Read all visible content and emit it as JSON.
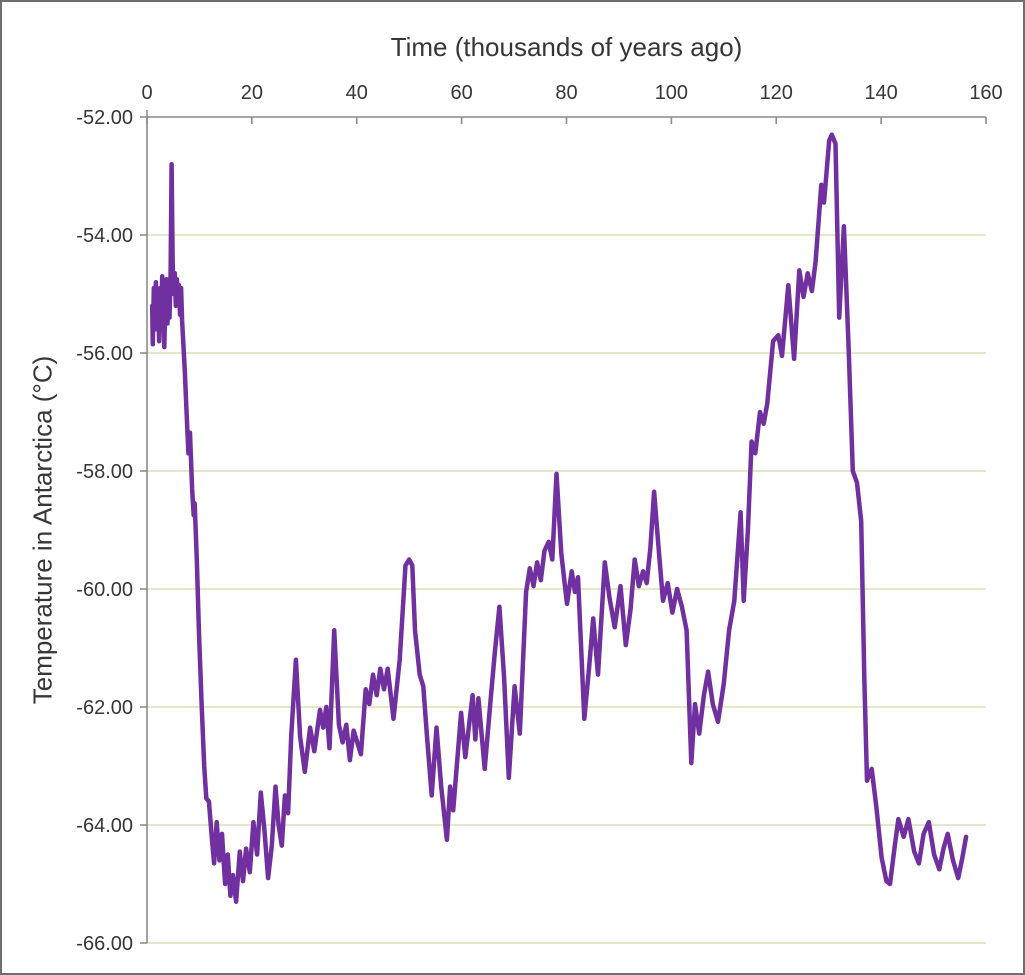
{
  "chart": {
    "top_title": "Time (thousands of years ago)",
    "y_title": "Temperature in Antarctica (°C)"
  },
  "chart_data": {
    "type": "line",
    "title": "",
    "xlabel": "Time (thousands of years ago)",
    "ylabel": "Temperature in Antarctica (°C)",
    "xlim": [
      0,
      160
    ],
    "ylim": [
      -66,
      -52
    ],
    "x_ticks": [
      0,
      20,
      40,
      60,
      80,
      100,
      120,
      140,
      160
    ],
    "y_ticks": [
      -52,
      -54,
      -56,
      -58,
      -60,
      -62,
      -64,
      -66
    ],
    "y_tick_labels": [
      "-52.00",
      "-54.00",
      "-56.00",
      "-58.00",
      "-60.00",
      "-62.00",
      "-64.00",
      "-66.00"
    ],
    "grid": "horizontal",
    "legend": "none",
    "colors": {
      "line": "#7030A0",
      "gridline": "#d9e1b5",
      "axis": "#8c8c8c",
      "text": "#363636",
      "frame_border": "#6e6e6e"
    },
    "series": [
      {
        "name": "Antarctic temperature",
        "x": [
          1.0,
          1.1,
          1.3,
          1.5,
          1.7,
          1.9,
          2.1,
          2.3,
          2.5,
          2.7,
          2.9,
          3.1,
          3.3,
          3.5,
          3.7,
          3.9,
          4.1,
          4.3,
          4.5,
          4.7,
          4.9,
          5.1,
          5.3,
          5.5,
          5.7,
          5.9,
          6.1,
          6.3,
          6.5,
          6.7,
          6.9,
          7.2,
          7.5,
          7.9,
          8.2,
          8.6,
          8.9,
          9.1,
          9.5,
          9.9,
          10.4,
          10.9,
          11.3,
          11.8,
          12.4,
          12.8,
          13.3,
          13.8,
          14.3,
          14.9,
          15.4,
          15.9,
          16.4,
          17.0,
          17.7,
          18.3,
          18.9,
          19.6,
          20.3,
          21.0,
          21.7,
          22.4,
          23.1,
          23.8,
          24.5,
          25.1,
          25.7,
          26.3,
          26.9,
          27.5,
          28.4,
          29.2,
          30.1,
          31.1,
          31.9,
          33.0,
          33.6,
          34.2,
          34.8,
          35.7,
          36.6,
          37.3,
          38.0,
          38.7,
          39.4,
          40.1,
          40.8,
          41.7,
          42.4,
          43.1,
          43.8,
          44.5,
          45.2,
          45.9,
          47.0,
          48.2,
          49.3,
          50.0,
          50.6,
          51.1,
          52.0,
          52.7,
          53.4,
          54.3,
          55.2,
          56.1,
          57.2,
          57.8,
          58.4,
          59.9,
          60.7,
          62.1,
          62.6,
          63.2,
          64.4,
          65.5,
          66.3,
          67.2,
          68.1,
          69.0,
          70.1,
          71.1,
          72.3,
          73.0,
          73.7,
          74.4,
          75.1,
          75.8,
          76.6,
          77.3,
          78.1,
          79.0,
          80.1,
          81.0,
          81.6,
          82.2,
          83.4,
          84.3,
          85.1,
          86.0,
          87.3,
          88.2,
          89.2,
          90.3,
          91.3,
          92.2,
          93.0,
          93.8,
          94.6,
          95.3,
          96.0,
          96.7,
          97.6,
          98.4,
          99.3,
          100.2,
          101.1,
          102.0,
          102.9,
          103.8,
          104.5,
          105.3,
          106.2,
          107.0,
          107.9,
          108.9,
          110.0,
          111.0,
          112.0,
          113.2,
          113.8,
          114.6,
          115.3,
          116.0,
          116.9,
          117.6,
          118.3,
          119.4,
          120.4,
          121.1,
          122.3,
          123.4,
          124.4,
          125.2,
          126.0,
          126.8,
          127.5,
          128.6,
          129.1,
          130.1,
          130.6,
          131.3,
          132.0,
          132.9,
          133.8,
          134.6,
          135.4,
          136.2,
          136.8,
          137.3,
          138.2,
          139.1,
          140.1,
          141.0,
          141.7,
          142.6,
          143.3,
          144.3,
          145.2,
          146.3,
          147.2,
          148.1,
          149.1,
          150.1,
          151.1,
          151.9,
          152.7,
          153.7,
          154.7,
          155.5,
          156.2
        ],
        "y": [
          -55.2,
          -55.85,
          -54.9,
          -55.6,
          -54.8,
          -55.5,
          -55.0,
          -55.8,
          -54.9,
          -55.45,
          -54.7,
          -55.3,
          -55.9,
          -55.1,
          -54.75,
          -55.5,
          -54.85,
          -55.4,
          -54.65,
          -52.8,
          -54.5,
          -55.0,
          -54.65,
          -55.2,
          -54.75,
          -55.15,
          -54.85,
          -55.35,
          -54.9,
          -55.45,
          -55.8,
          -56.3,
          -56.9,
          -57.7,
          -57.35,
          -58.3,
          -58.75,
          -58.55,
          -59.5,
          -60.7,
          -61.9,
          -63.0,
          -63.55,
          -63.6,
          -64.25,
          -64.65,
          -63.95,
          -64.6,
          -64.15,
          -65.0,
          -64.5,
          -65.2,
          -64.85,
          -65.3,
          -64.45,
          -64.95,
          -64.4,
          -64.8,
          -63.95,
          -64.5,
          -63.45,
          -64.1,
          -64.9,
          -64.35,
          -63.35,
          -64.0,
          -64.35,
          -63.5,
          -63.8,
          -62.5,
          -61.2,
          -62.5,
          -63.1,
          -62.35,
          -62.75,
          -62.05,
          -62.35,
          -62.0,
          -62.7,
          -60.7,
          -62.3,
          -62.6,
          -62.3,
          -62.9,
          -62.4,
          -62.6,
          -62.8,
          -61.7,
          -61.95,
          -61.45,
          -61.8,
          -61.35,
          -61.7,
          -61.35,
          -62.2,
          -61.2,
          -59.6,
          -59.5,
          -59.6,
          -60.7,
          -61.45,
          -61.65,
          -62.5,
          -63.5,
          -62.35,
          -63.35,
          -64.25,
          -63.35,
          -63.75,
          -62.1,
          -62.85,
          -61.8,
          -62.55,
          -61.85,
          -63.05,
          -61.9,
          -61.1,
          -60.3,
          -61.5,
          -63.2,
          -61.65,
          -62.45,
          -60.05,
          -59.65,
          -59.95,
          -59.55,
          -59.85,
          -59.35,
          -59.2,
          -59.5,
          -58.05,
          -59.4,
          -60.25,
          -59.7,
          -60.05,
          -59.8,
          -62.2,
          -61.35,
          -60.5,
          -61.45,
          -59.55,
          -60.15,
          -60.65,
          -59.95,
          -60.95,
          -60.35,
          -59.5,
          -59.95,
          -59.7,
          -59.9,
          -59.3,
          -58.35,
          -59.35,
          -60.2,
          -59.9,
          -60.4,
          -60.0,
          -60.3,
          -60.7,
          -62.95,
          -61.95,
          -62.45,
          -61.8,
          -61.4,
          -61.95,
          -62.25,
          -61.6,
          -60.7,
          -60.2,
          -58.7,
          -60.2,
          -59.0,
          -57.5,
          -57.7,
          -57.0,
          -57.2,
          -56.85,
          -55.8,
          -55.7,
          -56.05,
          -54.85,
          -56.1,
          -54.6,
          -55.05,
          -54.65,
          -54.95,
          -54.45,
          -53.15,
          -53.45,
          -52.4,
          -52.3,
          -52.45,
          -55.4,
          -53.85,
          -55.9,
          -58.0,
          -58.2,
          -58.85,
          -61.5,
          -63.25,
          -63.05,
          -63.7,
          -64.55,
          -64.95,
          -65.0,
          -64.35,
          -63.9,
          -64.2,
          -63.9,
          -64.45,
          -64.65,
          -64.15,
          -63.95,
          -64.5,
          -64.75,
          -64.4,
          -64.15,
          -64.6,
          -64.9,
          -64.55,
          -64.2
        ]
      }
    ]
  }
}
